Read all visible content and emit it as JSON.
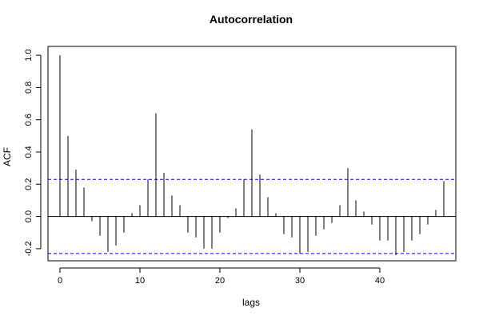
{
  "chart_data": {
    "type": "bar",
    "title": "Autocorrelation",
    "xlabel": "lags",
    "ylabel": "ACF",
    "xlim": [
      -1.5,
      49.5
    ],
    "ylim": [
      -0.275,
      1.055
    ],
    "x_ticks": [
      0,
      10,
      20,
      30,
      40
    ],
    "y_ticks": [
      -0.2,
      0.0,
      0.2,
      0.4,
      0.6,
      0.8,
      1.0
    ],
    "y_tick_labels": [
      "-0.2",
      "0.0",
      "0.2",
      "0.4",
      "0.6",
      "0.8",
      "1.0"
    ],
    "lags": [
      0,
      1,
      2,
      3,
      4,
      5,
      6,
      7,
      8,
      9,
      10,
      11,
      12,
      13,
      14,
      15,
      16,
      17,
      18,
      19,
      20,
      21,
      22,
      23,
      24,
      25,
      26,
      27,
      28,
      29,
      30,
      31,
      32,
      33,
      34,
      35,
      36,
      37,
      38,
      39,
      40,
      41,
      42,
      43,
      44,
      45,
      46,
      47,
      48
    ],
    "values": [
      1.0,
      0.5,
      0.29,
      0.18,
      -0.03,
      -0.12,
      -0.22,
      -0.18,
      -0.1,
      0.02,
      0.07,
      0.23,
      0.64,
      0.27,
      0.13,
      0.07,
      -0.1,
      -0.13,
      -0.2,
      -0.2,
      -0.1,
      -0.01,
      0.05,
      0.23,
      0.54,
      0.26,
      0.12,
      0.02,
      -0.11,
      -0.13,
      -0.23,
      -0.22,
      -0.12,
      -0.08,
      -0.04,
      0.07,
      0.3,
      0.1,
      0.03,
      -0.05,
      -0.15,
      -0.15,
      -0.24,
      -0.22,
      -0.15,
      -0.11,
      -0.05,
      0.04,
      0.22
    ],
    "confidence_bound": 0.23,
    "bar_color": "#000000",
    "confidence_color": "#0000ff",
    "grid": false
  }
}
